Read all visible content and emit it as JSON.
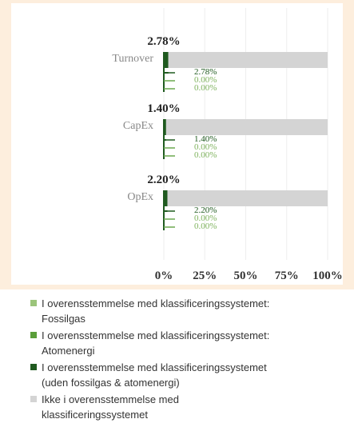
{
  "chart_data": {
    "type": "bar",
    "orientation": "horizontal",
    "categories": [
      "Turnover",
      "CapEx",
      "OpEx"
    ],
    "series": [
      {
        "name": "I overensstemmelse med klassificeringssystemet: Fossilgas",
        "color": "#9bc47a",
        "values": [
          0.0,
          0.0,
          0.0
        ],
        "value_labels": [
          "0.00%",
          "0.00%",
          "0.00%"
        ]
      },
      {
        "name": "I overensstemmelse med klassificeringssystemet: Atomenergi",
        "color": "#5a9e3a",
        "values": [
          0.0,
          0.0,
          0.0
        ],
        "value_labels": [
          "0.00%",
          "0.00%",
          "0.00%"
        ]
      },
      {
        "name": "I overensstemmelse med klassificeringssystemet (uden fossilgas & atomenergi)",
        "color": "#1f5a1f",
        "values": [
          2.78,
          1.4,
          2.2
        ],
        "value_labels": [
          "2.78%",
          "1.40%",
          "2.20%"
        ]
      },
      {
        "name": "Ikke i overensstemmelse med klassificeringssystemet",
        "color": "#d4d4d4",
        "values": [
          97.22,
          98.6,
          97.8
        ]
      }
    ],
    "xlim": [
      0,
      100
    ],
    "xticks": [
      {
        "value": 0,
        "label": "0%"
      },
      {
        "value": 25,
        "label": "25%"
      },
      {
        "value": 50,
        "label": "50%"
      },
      {
        "value": 75,
        "label": "75%"
      },
      {
        "value": 100,
        "label": "100%"
      }
    ],
    "grid": true
  }
}
